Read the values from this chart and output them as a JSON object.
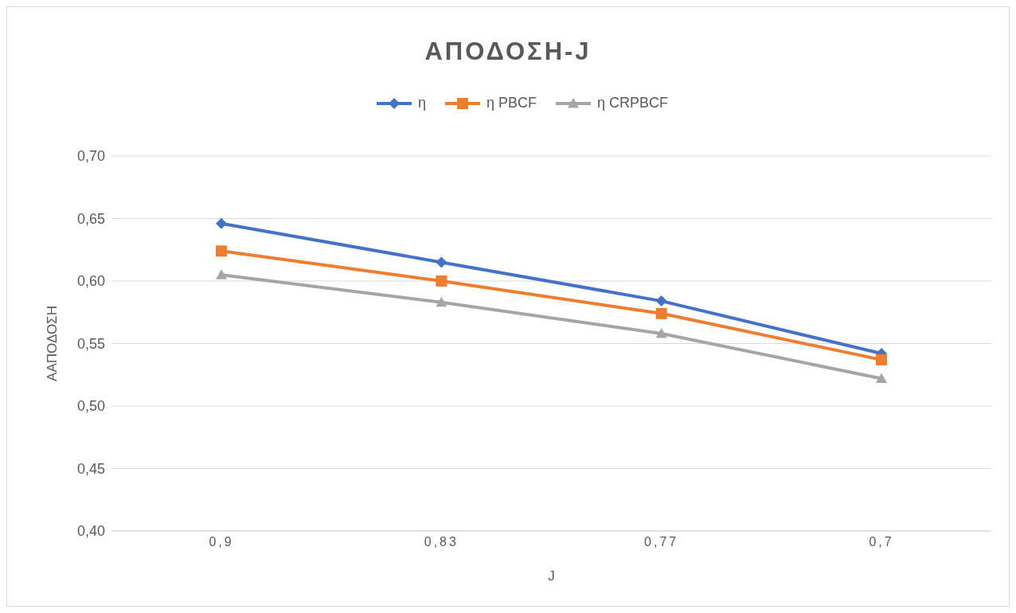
{
  "chart_data": {
    "type": "line",
    "title": "ΑΠΟΔΟΣΗ-J",
    "xlabel": "J",
    "ylabel": "ΑΑΠΟΔΟΣΗ",
    "categories": [
      "0,9",
      "0,83",
      "0,77",
      "0,7"
    ],
    "series": [
      {
        "name": "η",
        "color": "#4472c4",
        "marker": "diamond",
        "values": [
          0.646,
          0.615,
          0.584,
          0.542
        ]
      },
      {
        "name": "η PBCF",
        "color": "#ed7d31",
        "marker": "square",
        "values": [
          0.624,
          0.6,
          0.574,
          0.537
        ]
      },
      {
        "name": "η CRPBCF",
        "color": "#a5a5a5",
        "marker": "triangle",
        "values": [
          0.605,
          0.583,
          0.558,
          0.522
        ]
      }
    ],
    "ylim": [
      0.4,
      0.7
    ],
    "yticks": [
      {
        "value": 0.4,
        "label": "0,40"
      },
      {
        "value": 0.45,
        "label": "0,45"
      },
      {
        "value": 0.5,
        "label": "0,50"
      },
      {
        "value": 0.55,
        "label": "0,55"
      },
      {
        "value": 0.6,
        "label": "0,60"
      },
      {
        "value": 0.65,
        "label": "0,65"
      },
      {
        "value": 0.7,
        "label": "0,70"
      }
    ],
    "grid": "y",
    "legend": "top",
    "line_style": "solid"
  }
}
